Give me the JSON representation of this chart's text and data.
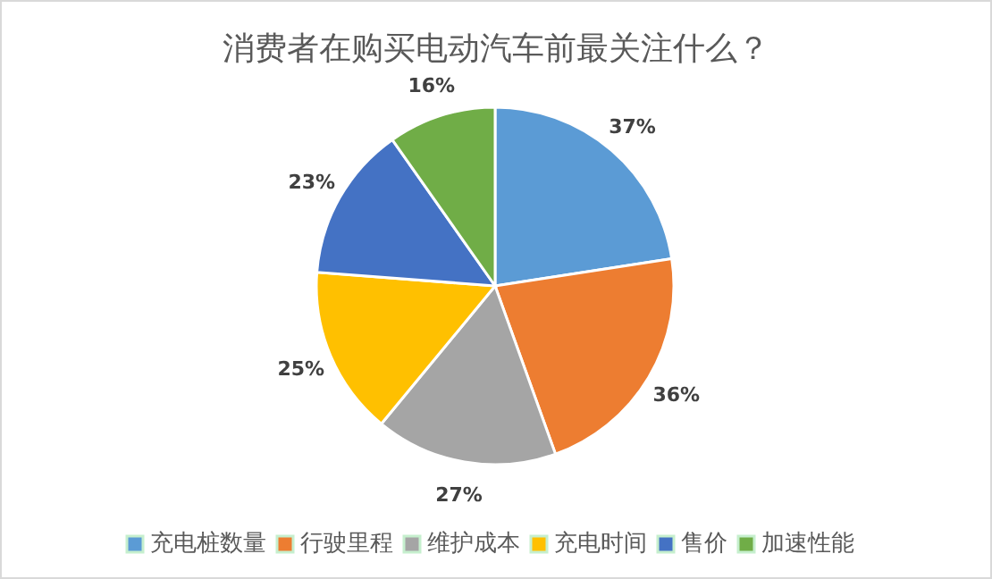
{
  "chart_data": {
    "type": "pie",
    "title": "消费者在购买电动汽车前最关注什么？",
    "categories": [
      "充电桩数量",
      "行驶里程",
      "维护成本",
      "充电时间",
      "售价",
      "加速性能"
    ],
    "values": [
      37,
      36,
      27,
      25,
      23,
      16
    ],
    "value_labels": [
      "37%",
      "36%",
      "27%",
      "25%",
      "23%",
      "16%"
    ],
    "colors": [
      "#5b9bd5",
      "#ed7d31",
      "#a5a5a5",
      "#ffc000",
      "#4472c4",
      "#70ad47"
    ],
    "legend": "bottom"
  }
}
